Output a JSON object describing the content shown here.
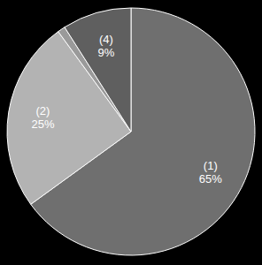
{
  "chart_data": {
    "type": "pie",
    "categories": [
      "(1)",
      "(2)",
      null,
      "(4)"
    ],
    "values": [
      65,
      25,
      1,
      9
    ],
    "value_labels": [
      "65%",
      "25%",
      null,
      "9%"
    ],
    "colors": [
      "#6f6f6f",
      "#b3b3b3",
      "#9a9a9a",
      "#5f5f5f"
    ],
    "data_labels": true
  }
}
